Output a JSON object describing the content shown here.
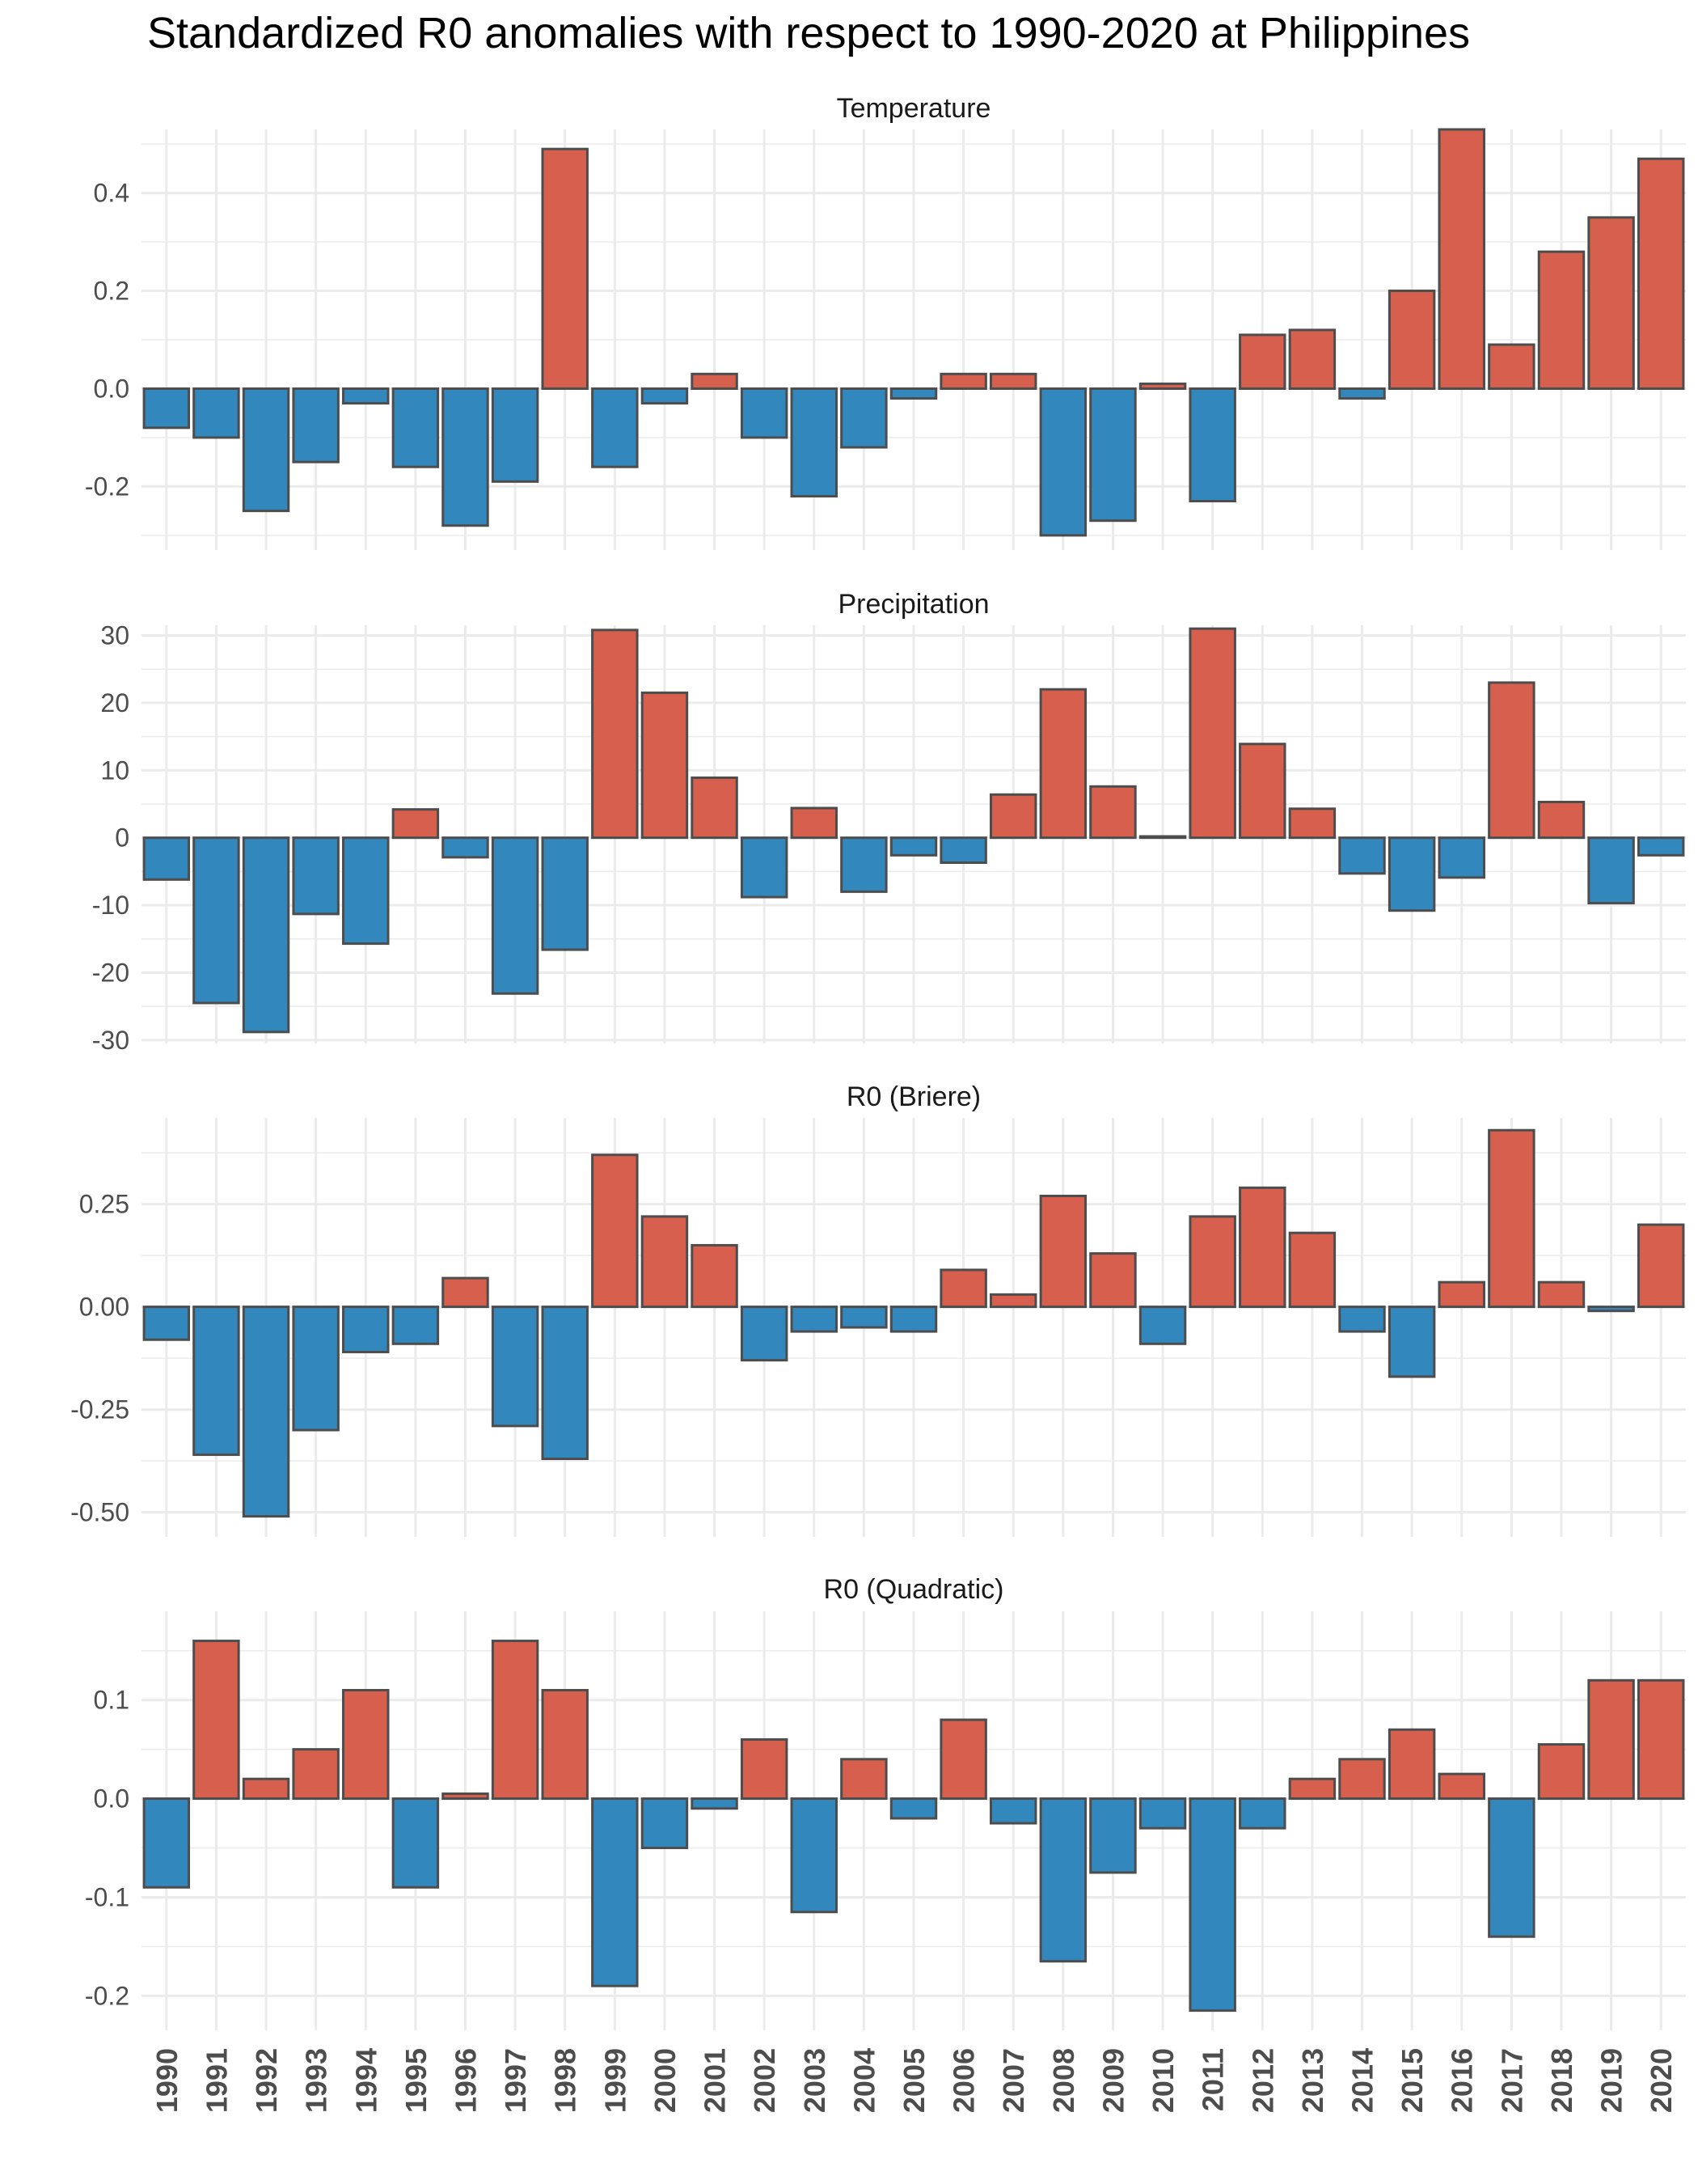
{
  "title": "Standardized R0 anomalies with respect to 1990-2020 at Philippines",
  "colors": {
    "positive": "#D6604D",
    "negative": "#3288BD",
    "outline": "#4D4D4D",
    "grid": "#EBEBEB"
  },
  "chart_data": {
    "type": "bar",
    "categories": [
      "1990",
      "1991",
      "1992",
      "1993",
      "1994",
      "1995",
      "1996",
      "1997",
      "1998",
      "1999",
      "2000",
      "2001",
      "2002",
      "2003",
      "2004",
      "2005",
      "2006",
      "2007",
      "2008",
      "2009",
      "2010",
      "2011",
      "2012",
      "2013",
      "2014",
      "2015",
      "2016",
      "2017",
      "2018",
      "2019",
      "2020"
    ],
    "grid": true,
    "panels": [
      {
        "title": "Temperature",
        "ylim": [
          -0.33,
          0.53
        ],
        "yticks": [
          -0.2,
          0.0,
          0.2,
          0.4
        ],
        "ytick_labels": [
          "-0.2",
          "0.0",
          "0.2",
          "0.4"
        ],
        "values": [
          -0.08,
          -0.1,
          -0.25,
          -0.15,
          -0.03,
          -0.16,
          -0.28,
          -0.19,
          0.49,
          -0.16,
          -0.03,
          0.03,
          -0.1,
          -0.22,
          -0.12,
          -0.02,
          0.03,
          0.03,
          -0.3,
          -0.27,
          0.01,
          -0.23,
          0.11,
          0.12,
          -0.02,
          0.2,
          0.53,
          0.09,
          0.28,
          0.35,
          0.47
        ]
      },
      {
        "title": "Precipitation",
        "ylim": [
          -30.5,
          31.5
        ],
        "yticks": [
          -30,
          -20,
          -10,
          0,
          10,
          20,
          30
        ],
        "ytick_labels": [
          "-30",
          "-20",
          "-10",
          "0",
          "10",
          "20",
          "30"
        ],
        "values": [
          -6.2,
          -24.5,
          -28.8,
          -11.3,
          -15.7,
          4.2,
          -2.9,
          -23.1,
          -16.6,
          30.8,
          21.5,
          8.9,
          -8.8,
          4.4,
          -8.0,
          -2.6,
          -3.7,
          6.4,
          22.0,
          7.6,
          0.2,
          31.0,
          13.9,
          4.3,
          -5.3,
          -10.8,
          -5.9,
          23.0,
          5.3,
          -9.7,
          -2.6
        ]
      },
      {
        "title": "R0 (Briere)",
        "ylim": [
          -0.56,
          0.46
        ],
        "yticks": [
          -0.5,
          -0.25,
          0.0,
          0.25
        ],
        "ytick_labels": [
          "-0.50",
          "-0.25",
          "0.00",
          "0.25"
        ],
        "values": [
          -0.08,
          -0.36,
          -0.51,
          -0.3,
          -0.11,
          -0.09,
          0.07,
          -0.29,
          -0.37,
          0.37,
          0.22,
          0.15,
          -0.13,
          -0.06,
          -0.05,
          -0.06,
          0.09,
          0.03,
          0.27,
          0.13,
          -0.09,
          0.22,
          0.29,
          0.18,
          -0.06,
          -0.17,
          0.06,
          0.43,
          0.06,
          -0.01,
          0.2
        ]
      },
      {
        "title": "R0 (Quadratic)",
        "ylim": [
          -0.235,
          0.19
        ],
        "yticks": [
          -0.2,
          -0.1,
          0.0,
          0.1
        ],
        "ytick_labels": [
          "-0.2",
          "-0.1",
          "0.0",
          "0.1"
        ],
        "values": [
          -0.09,
          0.16,
          0.02,
          0.05,
          0.11,
          -0.09,
          0.005,
          0.16,
          0.11,
          -0.19,
          -0.05,
          -0.01,
          0.06,
          -0.115,
          0.04,
          -0.02,
          0.08,
          -0.025,
          -0.165,
          -0.075,
          -0.03,
          -0.215,
          -0.03,
          0.02,
          0.04,
          0.07,
          0.025,
          -0.14,
          0.055,
          0.12,
          0.12
        ]
      }
    ]
  }
}
